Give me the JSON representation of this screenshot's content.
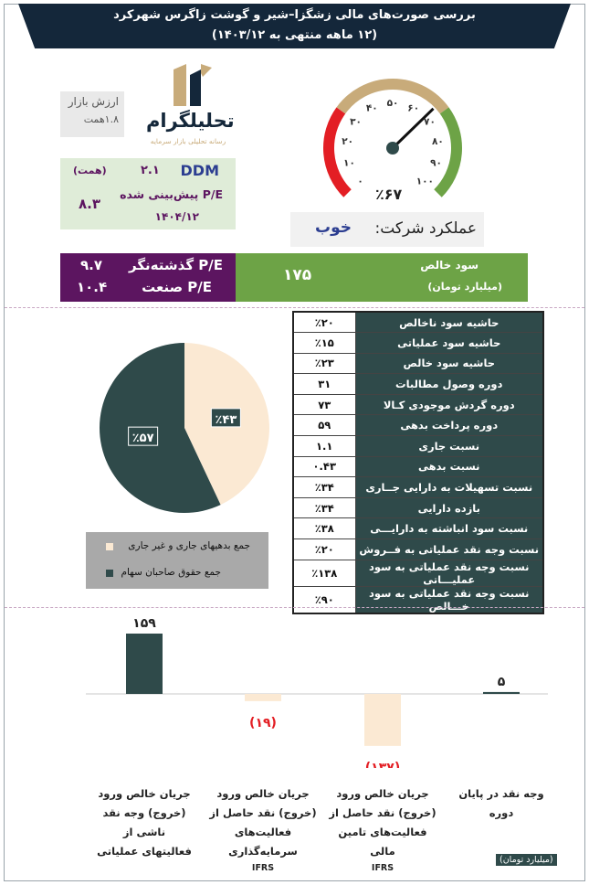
{
  "header": {
    "title": "بررسی صورت‌های مالی زشگزا–شیر و گوشت زاگرس شهرکرد",
    "subtitle": "(۱۲ ماهه منتهی به ۱۴۰۳/۱۲)"
  },
  "market_value": {
    "label": "ارزش بازار",
    "value": "۱.۸همت"
  },
  "logo": {
    "name": "تحلیلگرام",
    "tagline": "رسانه تحلیلی بازار سرمایه"
  },
  "ddm": {
    "model": "DDM",
    "model_value": "۲.۱",
    "unit": "(همت)",
    "pe_label": "P/E پیش‌بینی شده",
    "pe_value": "۸.۳",
    "date": "۱۴۰۴/۱۲"
  },
  "gauge": {
    "ticks": [
      "۰",
      "۱۰",
      "۲۰",
      "۳۰",
      "۴۰",
      "۵۰",
      "۶۰",
      "۷۰",
      "۸۰",
      "۹۰",
      "۱۰۰"
    ],
    "value": 67,
    "value_label": "٪۶۷",
    "colors": {
      "red": "#e31e24",
      "tan": "#c8ab7a",
      "green": "#6da346"
    }
  },
  "performance": {
    "label": "عملکرد شرکت:",
    "value": "خوب"
  },
  "pe": {
    "trailing_label": "P/E گذشته‌نگر",
    "trailing_value": "۹.۷",
    "industry_label": "P/E صنعت",
    "industry_value": "۱۰.۴"
  },
  "net_profit": {
    "label": "سود خالص",
    "unit": "(میلیارد تومان)",
    "value": "۱۷۵"
  },
  "ratios": [
    {
      "label": "حاشیه سود ناخالص",
      "value": "٪۲۰"
    },
    {
      "label": "حاشیه سود عملیاتی",
      "value": "٪۱۵"
    },
    {
      "label": "حاشیه سود خالص",
      "value": "٪۲۳"
    },
    {
      "label": "دوره وصول مطالبات",
      "value": "۳۱"
    },
    {
      "label": "دوره گردش موجودی کـالا",
      "value": "۷۳"
    },
    {
      "label": "دوره  پرداخت بدهی",
      "value": "۵۹"
    },
    {
      "label": "نسبت  جاری",
      "value": "۱.۱"
    },
    {
      "label": "نسبت بدهی",
      "value": "۰.۴۳"
    },
    {
      "label": "نسبت تسهیلات به دارایی جــاری",
      "value": "٪۳۴"
    },
    {
      "label": "بازده  دارایی",
      "value": "٪۳۴"
    },
    {
      "label": "نسبت سود انباشته به دارایـــی",
      "value": "٪۳۸"
    },
    {
      "label": "نسبت وجه نقد عملیاتی به فــروش",
      "value": "٪۲۰"
    },
    {
      "label": "نسبت وجه نقد عملیاتی به سود عملیـــاتی",
      "value": "٪۱۳۸"
    },
    {
      "label": "نسبت وجه نقد عملیاتی به سود خـــالص",
      "value": "٪۹۰"
    }
  ],
  "chart_data": [
    {
      "type": "pie",
      "slices": [
        {
          "name": "جمع بدهیهای جاری و غیر جاری",
          "value": 43,
          "label": "٪۴۳",
          "color": "#fbe9d3"
        },
        {
          "name": "جمع حقوق صاحبان سهام",
          "value": 57,
          "label": "٪۵۷",
          "color": "#2f4a4a"
        }
      ]
    },
    {
      "type": "bar",
      "categories": [
        "جریان خالص ورود (خروج) وجه نقد ناشی از فعالیتهای عملیاتی",
        "جریان خالص ورود (خروج) نقد حاصل از فعالیت‌های سرمایه‌گذاری IFRS",
        "جریان خالص ورود (خروج) نقد حاصل از فعالیت‌های تامین مالی IFRS",
        "وجه نقد در پایان دوره"
      ],
      "values": [
        159,
        -19,
        -137,
        5
      ],
      "value_labels": [
        "۱۵۹",
        "(۱۹)",
        "(۱۳۷)",
        "۵"
      ],
      "colors": [
        "#2f4a4a",
        "#fbe9d3",
        "#fbe9d3",
        "#2f4a4a"
      ],
      "unit": "(میلیارد تومان)"
    }
  ],
  "cashflow_labels": [
    {
      "l1": "جریان خالص ورود",
      "l2": "(خروج)  وجه نقد ناشی از",
      "l3": "فعالیتهای عملیاتی",
      "l4": ""
    },
    {
      "l1": "جریان خالص ورود",
      "l2": "(خروج) نقد حاصل از",
      "l3": "فعالیت‌های سرمایه‌گذاری",
      "l4": "IFRS"
    },
    {
      "l1": "جریان خالص ورود",
      "l2": "(خروج) نقد حاصل از",
      "l3": "فعالیت‌های تامین مالی",
      "l4": "IFRS"
    },
    {
      "l1": "وجه نقد در پایان دوره",
      "l2": "",
      "l3": "",
      "l4": ""
    }
  ]
}
